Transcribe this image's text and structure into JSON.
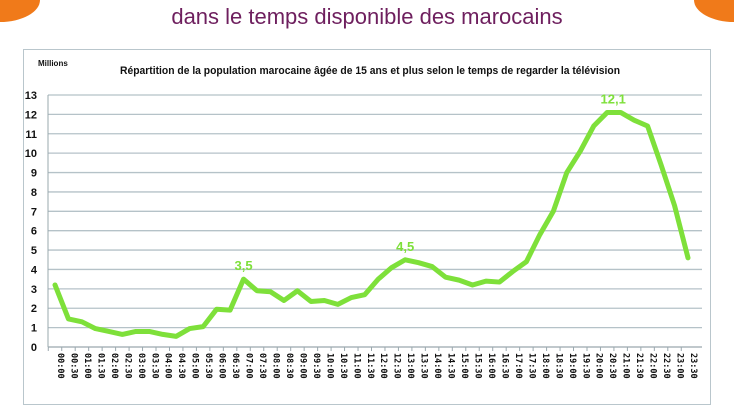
{
  "slide": {
    "title": "dans le temps disponible des marocains"
  },
  "chart_data": {
    "type": "line",
    "title": "Répartition de la population marocaine âgée de 15 ans et plus selon le temps de regarder la télévision",
    "ylabel": "Millions",
    "xlabel": "",
    "ylim": [
      0,
      13
    ],
    "yticks": [
      0,
      1,
      2,
      3,
      4,
      5,
      6,
      7,
      8,
      9,
      10,
      11,
      12,
      13
    ],
    "grid": true,
    "color": "#7ee03a",
    "categories": [
      "00:00",
      "00:30",
      "01:00",
      "01:30",
      "02:00",
      "02:30",
      "03:00",
      "03:30",
      "04:00",
      "04:30",
      "05:00",
      "05:30",
      "06:00",
      "06:30",
      "07:00",
      "07:30",
      "08:00",
      "08:30",
      "09:00",
      "09:30",
      "10:00",
      "10:30",
      "11:00",
      "11:30",
      "12:00",
      "12:30",
      "13:00",
      "13:30",
      "14:00",
      "14:30",
      "15:00",
      "15:30",
      "16:00",
      "16:30",
      "17:00",
      "17:30",
      "18:00",
      "18:30",
      "19:00",
      "19:30",
      "20:00",
      "20:30",
      "21:00",
      "21:30",
      "22:00",
      "22:30",
      "23:00",
      "23:30"
    ],
    "values": [
      3.2,
      1.45,
      1.3,
      0.95,
      0.8,
      0.65,
      0.8,
      0.8,
      0.65,
      0.55,
      0.95,
      1.05,
      1.95,
      1.9,
      3.5,
      2.9,
      2.85,
      2.4,
      2.9,
      2.35,
      2.4,
      2.2,
      2.55,
      2.7,
      3.5,
      4.1,
      4.5,
      4.35,
      4.15,
      3.6,
      3.45,
      3.2,
      3.4,
      3.35,
      3.9,
      4.4,
      5.8,
      7.0,
      9.0,
      10.1,
      11.4,
      12.1,
      12.1,
      11.7,
      11.4,
      9.4,
      7.3,
      4.6
    ],
    "annotations": [
      {
        "category": "07:00",
        "text": "3,5"
      },
      {
        "category": "13:00",
        "text": "4,5"
      },
      {
        "category": "20:30",
        "text": "12,1"
      }
    ]
  }
}
